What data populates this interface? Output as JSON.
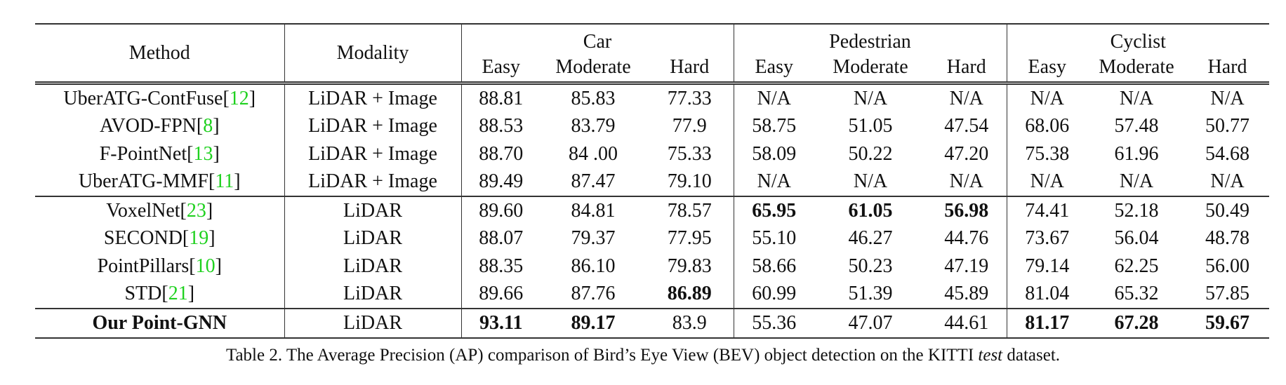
{
  "table": {
    "headers": {
      "method": "Method",
      "modality": "Modality",
      "groups": [
        "Car",
        "Pedestrian",
        "Cyclist"
      ],
      "sub": [
        "Easy",
        "Moderate",
        "Hard"
      ]
    },
    "rows": [
      {
        "method": "UberATG-ContFuse",
        "ref": "12",
        "modality": "LiDAR + Image",
        "values": [
          "88.81",
          "85.83",
          "77.33",
          "N/A",
          "N/A",
          "N/A",
          "N/A",
          "N/A",
          "N/A"
        ],
        "bold": [],
        "group_end": false
      },
      {
        "method": "AVOD-FPN",
        "ref": "8",
        "modality": "LiDAR + Image",
        "values": [
          "88.53",
          "83.79",
          "77.9",
          "58.75",
          "51.05",
          "47.54",
          "68.06",
          "57.48",
          "50.77"
        ],
        "bold": [],
        "group_end": false
      },
      {
        "method": "F-PointNet",
        "ref": "13",
        "modality": "LiDAR + Image",
        "values": [
          "88.70",
          "84 .00",
          "75.33",
          "58.09",
          "50.22",
          "47.20",
          "75.38",
          "61.96",
          "54.68"
        ],
        "bold": [],
        "group_end": false
      },
      {
        "method": "UberATG-MMF",
        "ref": "11",
        "modality": "LiDAR + Image",
        "values": [
          "89.49",
          "87.47",
          "79.10",
          "N/A",
          "N/A",
          "N/A",
          "N/A",
          "N/A",
          "N/A"
        ],
        "bold": [],
        "group_end": true
      },
      {
        "method": "VoxelNet",
        "ref": "23",
        "modality": "LiDAR",
        "values": [
          "89.60",
          "84.81",
          "78.57",
          "65.95",
          "61.05",
          "56.98",
          "74.41",
          "52.18",
          "50.49"
        ],
        "bold": [
          3,
          4,
          5
        ],
        "group_end": false
      },
      {
        "method": "SECOND",
        "ref": "19",
        "modality": "LiDAR",
        "values": [
          "88.07",
          "79.37",
          "77.95",
          "55.10",
          "46.27",
          "44.76",
          "73.67",
          "56.04",
          "48.78"
        ],
        "bold": [],
        "group_end": false
      },
      {
        "method": "PointPillars",
        "ref": "10",
        "modality": "LiDAR",
        "values": [
          "88.35",
          "86.10",
          "79.83",
          "58.66",
          "50.23",
          "47.19",
          "79.14",
          "62.25",
          "56.00"
        ],
        "bold": [],
        "group_end": false
      },
      {
        "method": "STD",
        "ref": "21",
        "modality": "LiDAR",
        "values": [
          "89.66",
          "87.76",
          "86.89",
          "60.99",
          "51.39",
          "45.89",
          "81.04",
          "65.32",
          "57.85"
        ],
        "bold": [
          2
        ],
        "group_end": true
      },
      {
        "method": "Our Point-GNN",
        "ref": "",
        "modality": "LiDAR",
        "values": [
          "93.11",
          "89.17",
          "83.9",
          "55.36",
          "47.07",
          "44.61",
          "81.17",
          "67.28",
          "59.67"
        ],
        "bold": [
          0,
          1,
          6,
          7,
          8
        ],
        "method_bold": true,
        "group_end": false
      }
    ]
  },
  "caption": {
    "prefix": "Table 2. The Average Precision (AP) comparison of Bird’s Eye View (BEV) object detection on the KITTI ",
    "italic": "test",
    "suffix": " dataset."
  },
  "colors": {
    "citation": "#1fd11f",
    "rule": "#333333"
  }
}
